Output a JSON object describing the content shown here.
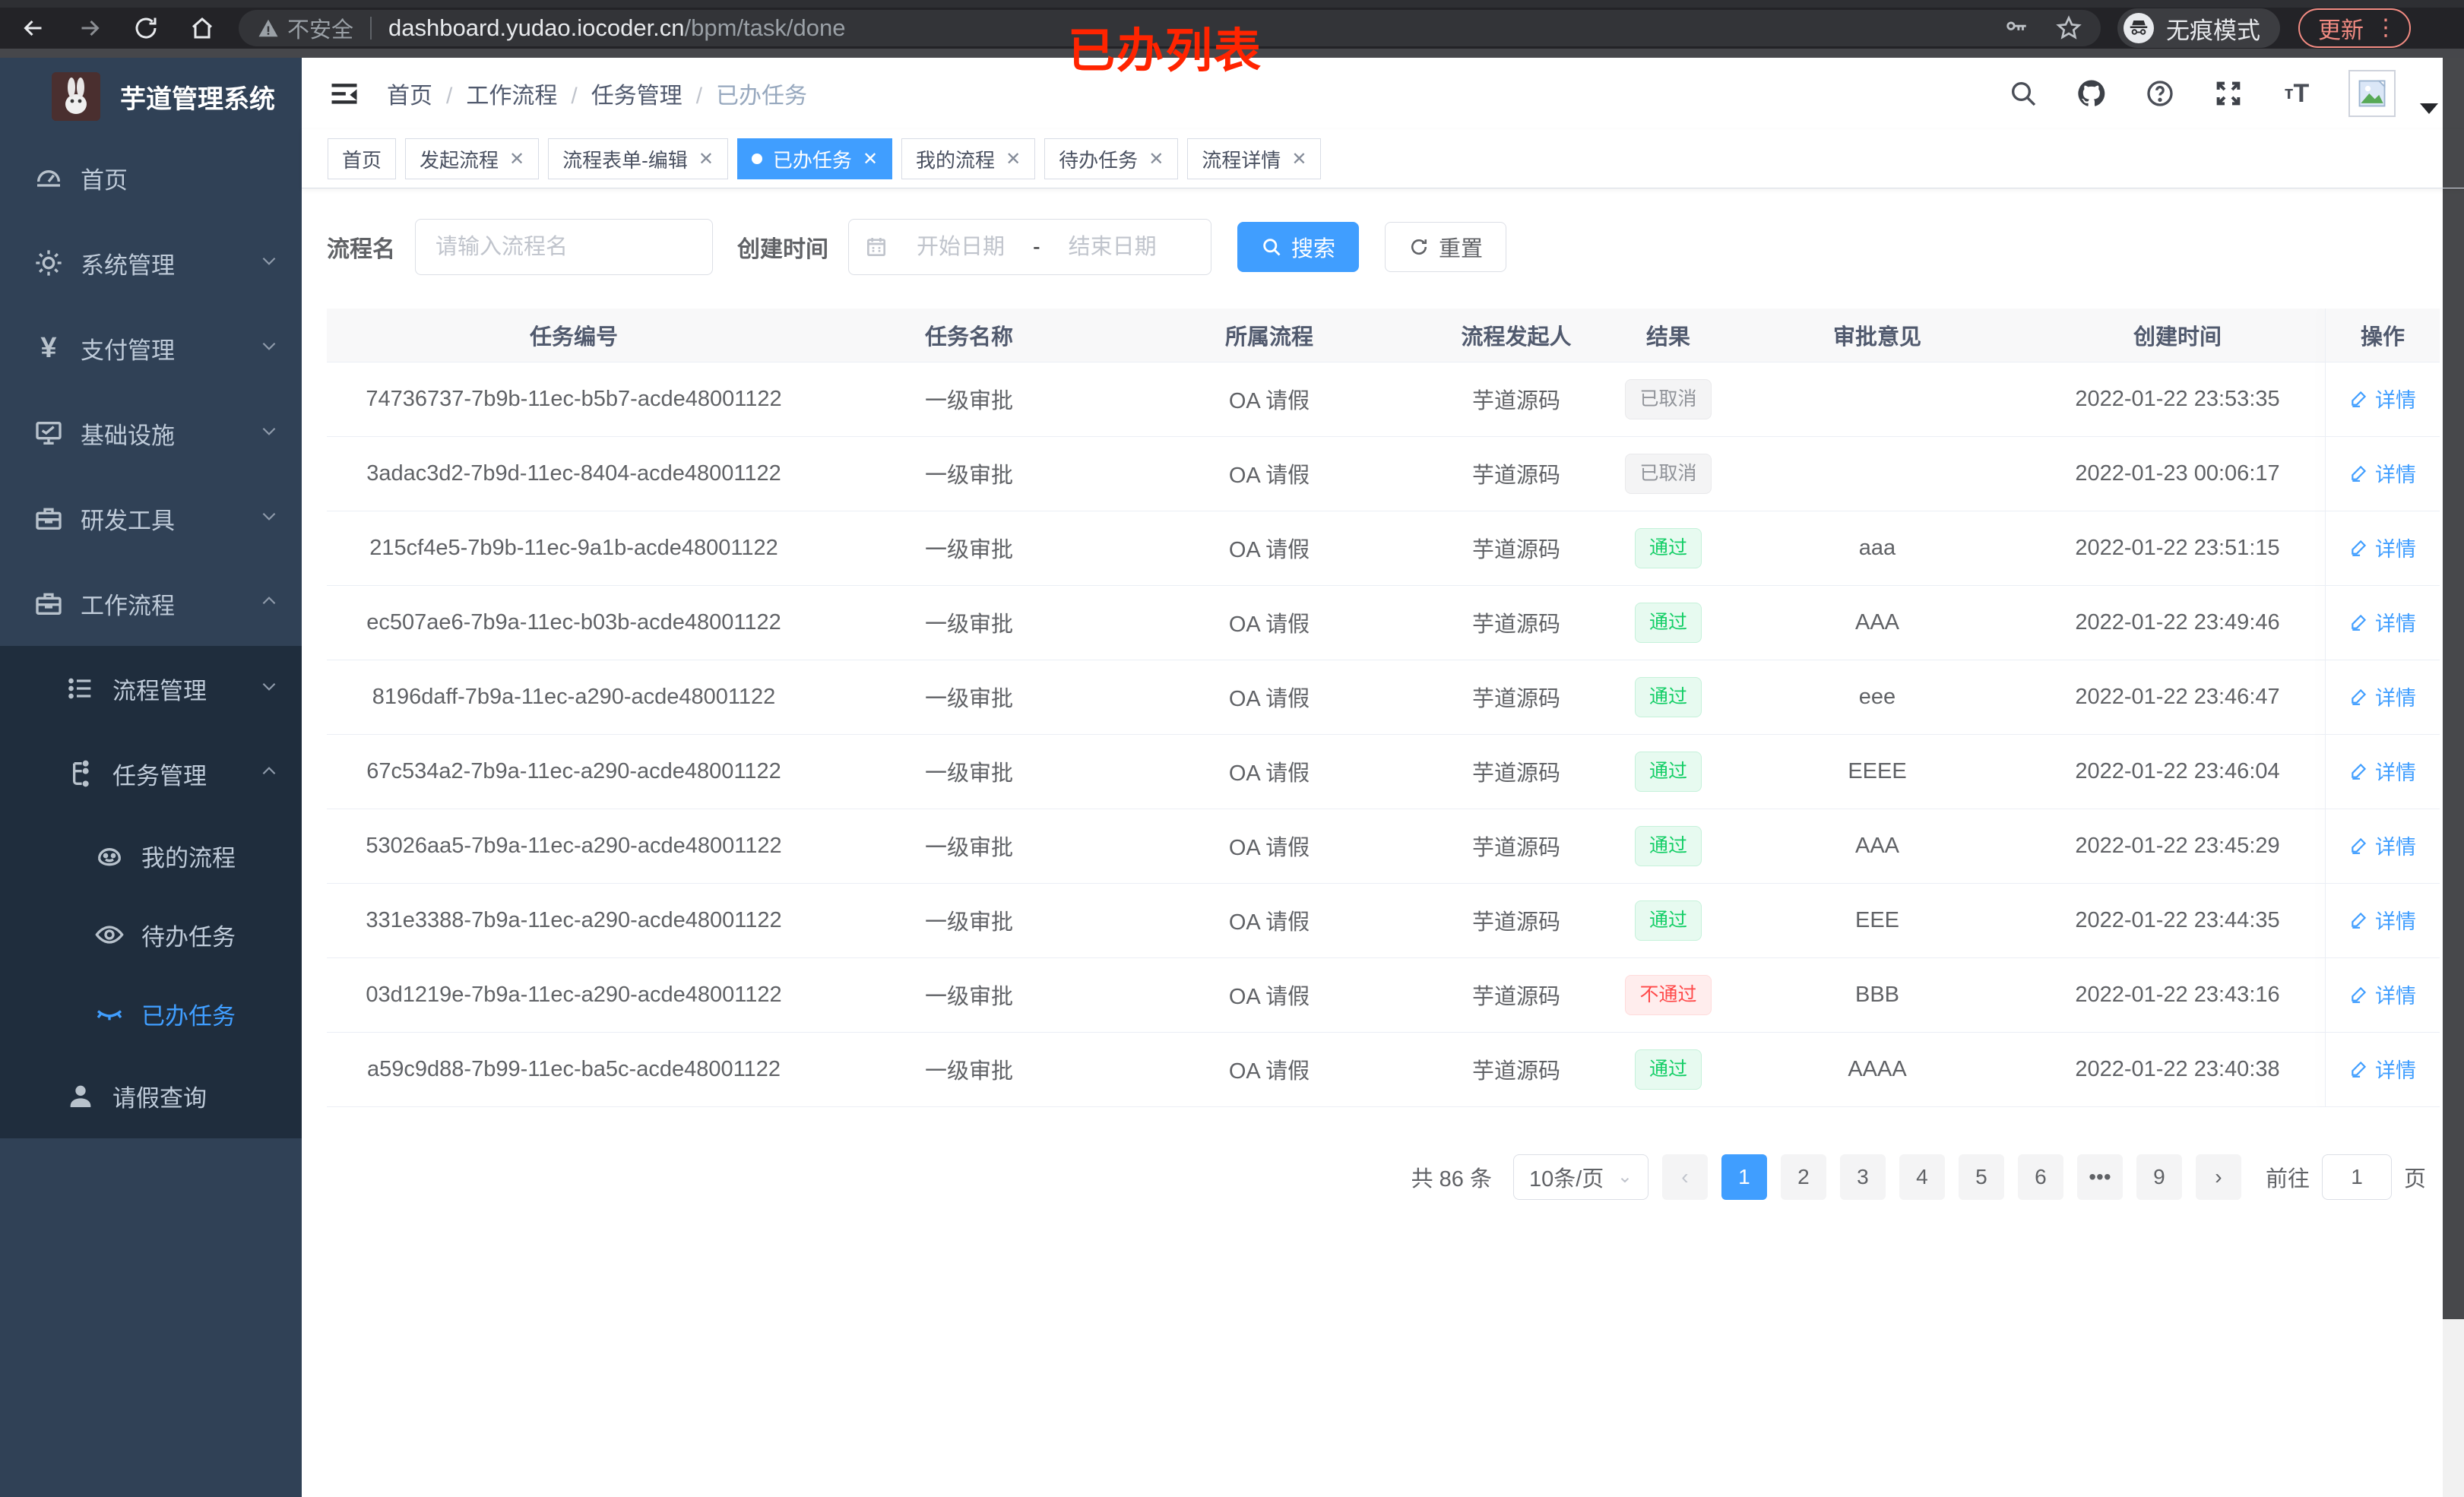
{
  "browser": {
    "annotation": "已办列表",
    "security_label": "不安全",
    "url_host": "dashboard.yudao.iocoder.cn",
    "url_path": "/bpm/task/done",
    "incognito_label": "无痕模式",
    "update_label": "更新"
  },
  "sidebar": {
    "title": "芋道管理系统",
    "items": [
      {
        "label": "首页"
      },
      {
        "label": "系统管理"
      },
      {
        "label": "支付管理"
      },
      {
        "label": "基础设施"
      },
      {
        "label": "研发工具"
      },
      {
        "label": "工作流程"
      },
      {
        "label": "流程管理"
      },
      {
        "label": "任务管理"
      },
      {
        "label": "我的流程"
      },
      {
        "label": "待办任务"
      },
      {
        "label": "已办任务"
      },
      {
        "label": "请假查询"
      }
    ]
  },
  "header": {
    "breadcrumbs": [
      "首页",
      "工作流程",
      "任务管理",
      "已办任务"
    ]
  },
  "tabs": [
    {
      "label": "首页",
      "closable": false,
      "active": false
    },
    {
      "label": "发起流程",
      "closable": true,
      "active": false
    },
    {
      "label": "流程表单-编辑",
      "closable": true,
      "active": false
    },
    {
      "label": "已办任务",
      "closable": true,
      "active": true
    },
    {
      "label": "我的流程",
      "closable": true,
      "active": false
    },
    {
      "label": "待办任务",
      "closable": true,
      "active": false
    },
    {
      "label": "流程详情",
      "closable": true,
      "active": false
    }
  ],
  "filters": {
    "name_label": "流程名",
    "name_placeholder": "请输入流程名",
    "time_label": "创建时间",
    "start_placeholder": "开始日期",
    "range_separator": "-",
    "end_placeholder": "结束日期",
    "search_label": "搜索",
    "reset_label": "重置"
  },
  "table": {
    "columns": [
      "任务编号",
      "任务名称",
      "所属流程",
      "流程发起人",
      "结果",
      "审批意见",
      "创建时间",
      "操作"
    ],
    "action_label": "详情",
    "rows": [
      {
        "id": "74736737-7b9b-11ec-b5b7-acde48001122",
        "name": "一级审批",
        "process": "OA 请假",
        "starter": "芋道源码",
        "result": "已取消",
        "result_type": "info",
        "comment": "",
        "time": "2022-01-22 23:53:35"
      },
      {
        "id": "3adac3d2-7b9d-11ec-8404-acde48001122",
        "name": "一级审批",
        "process": "OA 请假",
        "starter": "芋道源码",
        "result": "已取消",
        "result_type": "info",
        "comment": "",
        "time": "2022-01-23 00:06:17"
      },
      {
        "id": "215cf4e5-7b9b-11ec-9a1b-acde48001122",
        "name": "一级审批",
        "process": "OA 请假",
        "starter": "芋道源码",
        "result": "通过",
        "result_type": "success",
        "comment": "aaa",
        "time": "2022-01-22 23:51:15"
      },
      {
        "id": "ec507ae6-7b9a-11ec-b03b-acde48001122",
        "name": "一级审批",
        "process": "OA 请假",
        "starter": "芋道源码",
        "result": "通过",
        "result_type": "success",
        "comment": "AAA",
        "time": "2022-01-22 23:49:46"
      },
      {
        "id": "8196daff-7b9a-11ec-a290-acde48001122",
        "name": "一级审批",
        "process": "OA 请假",
        "starter": "芋道源码",
        "result": "通过",
        "result_type": "success",
        "comment": "eee",
        "time": "2022-01-22 23:46:47"
      },
      {
        "id": "67c534a2-7b9a-11ec-a290-acde48001122",
        "name": "一级审批",
        "process": "OA 请假",
        "starter": "芋道源码",
        "result": "通过",
        "result_type": "success",
        "comment": "EEEE",
        "time": "2022-01-22 23:46:04"
      },
      {
        "id": "53026aa5-7b9a-11ec-a290-acde48001122",
        "name": "一级审批",
        "process": "OA 请假",
        "starter": "芋道源码",
        "result": "通过",
        "result_type": "success",
        "comment": "AAA",
        "time": "2022-01-22 23:45:29"
      },
      {
        "id": "331e3388-7b9a-11ec-a290-acde48001122",
        "name": "一级审批",
        "process": "OA 请假",
        "starter": "芋道源码",
        "result": "通过",
        "result_type": "success",
        "comment": "EEE",
        "time": "2022-01-22 23:44:35"
      },
      {
        "id": "03d1219e-7b9a-11ec-a290-acde48001122",
        "name": "一级审批",
        "process": "OA 请假",
        "starter": "芋道源码",
        "result": "不通过",
        "result_type": "danger",
        "comment": "BBB",
        "time": "2022-01-22 23:43:16"
      },
      {
        "id": "a59c9d88-7b99-11ec-ba5c-acde48001122",
        "name": "一级审批",
        "process": "OA 请假",
        "starter": "芋道源码",
        "result": "通过",
        "result_type": "success",
        "comment": "AAAA",
        "time": "2022-01-22 23:40:38"
      }
    ]
  },
  "pagination": {
    "total": "共 86 条",
    "page_size": "10条/页",
    "pages": [
      {
        "label": "1",
        "active": true
      },
      {
        "label": "2",
        "active": false
      },
      {
        "label": "3",
        "active": false
      },
      {
        "label": "4",
        "active": false
      },
      {
        "label": "5",
        "active": false
      },
      {
        "label": "6",
        "active": false
      },
      {
        "label": "•••",
        "active": false
      },
      {
        "label": "9",
        "active": false
      }
    ],
    "goto_label": "前往",
    "goto_value": "1",
    "goto_suffix": "页"
  },
  "colors": {
    "accent": "#409eff",
    "sidebar_bg": "#304156",
    "submenu_bg": "#1f2d3d",
    "success": "#13ce66",
    "danger": "#ff4949",
    "info": "#909399"
  }
}
